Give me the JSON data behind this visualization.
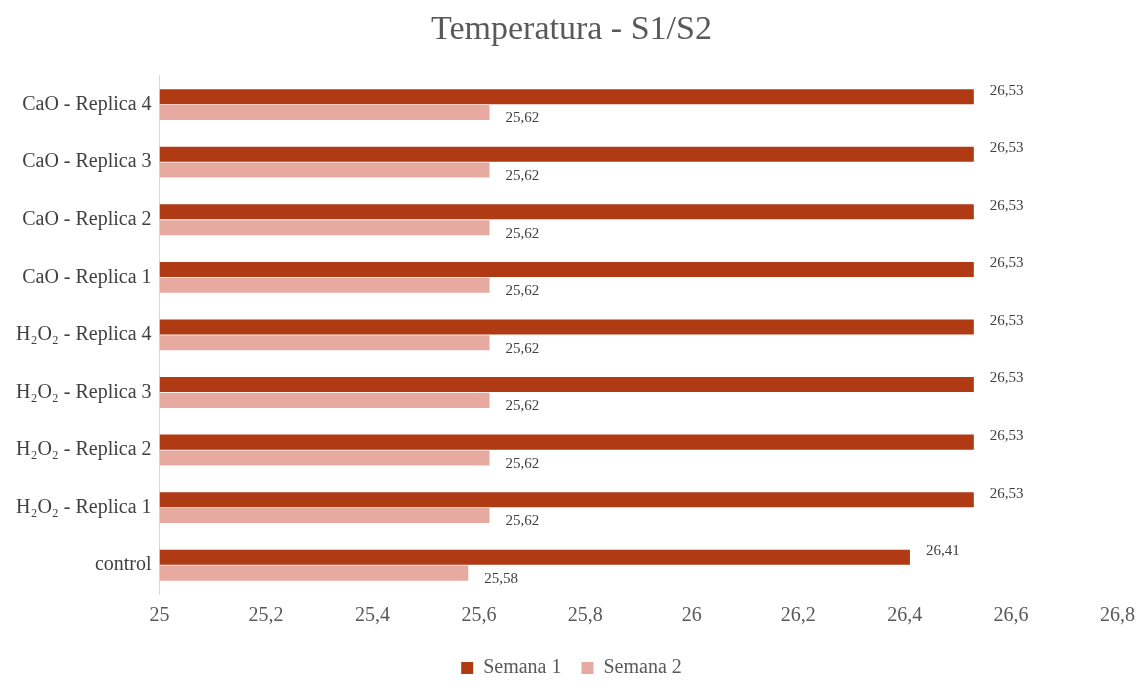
{
  "chart_data": {
    "type": "bar",
    "orientation": "horizontal",
    "title": "Temperatura - S1/S2",
    "categories": [
      "CaO - Replica 4",
      "CaO - Replica 3",
      "CaO - Replica 2",
      "CaO - Replica 1",
      "H₂O₂ - Replica 4",
      "H₂O₂ - Replica 3",
      "H₂O₂ - Replica 2",
      "H₂O₂ - Replica 1",
      "control"
    ],
    "series": [
      {
        "name": "Semana 1",
        "color": "#af3a14",
        "values": [
          26.53,
          26.53,
          26.53,
          26.53,
          26.53,
          26.53,
          26.53,
          26.53,
          26.41
        ],
        "value_labels": [
          "26,53",
          "26,53",
          "26,53",
          "26,53",
          "26,53",
          "26,53",
          "26,53",
          "26,53",
          "26,41"
        ]
      },
      {
        "name": "Semana 2",
        "color": "#e7aaa1",
        "values": [
          25.62,
          25.62,
          25.62,
          25.62,
          25.62,
          25.62,
          25.62,
          25.62,
          25.58
        ],
        "value_labels": [
          "25,62",
          "25,62",
          "25,62",
          "25,62",
          "25,62",
          "25,62",
          "25,62",
          "25,62",
          "25,58"
        ]
      }
    ],
    "xlim": [
      25,
      26.8
    ],
    "xticks": [
      25,
      {
        "value": 25.2,
        "label": "25,2"
      },
      {
        "value": 25.4,
        "label": "25,4"
      },
      {
        "value": 25.6,
        "label": "25,6"
      },
      {
        "value": 25.8,
        "label": "25,8"
      },
      26,
      {
        "value": 26.2,
        "label": "26,2"
      },
      {
        "value": 26.4,
        "label": "26,4"
      },
      {
        "value": 26.6,
        "label": "26,6"
      },
      {
        "value": 26.8,
        "label": "26,8"
      }
    ],
    "legend": "bottom",
    "grid": false
  }
}
